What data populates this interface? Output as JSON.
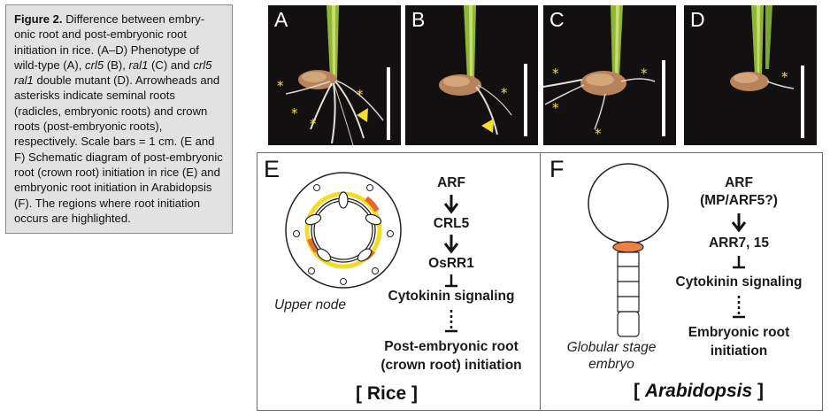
{
  "caption": {
    "fig_label": "Figure 2.",
    "parts": [
      {
        "t": " Difference between embry-onic root and post-embryonic root initiation in rice. (A–D) Phenotype of wild-type (A), ",
        "s": ""
      },
      {
        "t": "crl5",
        "s": "i"
      },
      {
        "t": " (B), ",
        "s": ""
      },
      {
        "t": "ral1",
        "s": "i"
      },
      {
        "t": " (C) and ",
        "s": ""
      },
      {
        "t": "crl5 ral1",
        "s": "i"
      },
      {
        "t": " double mutant (D). Arrowheads and asterisks indicate seminal roots (radicles, embryonic roots) and crown roots (post-embryonic roots), respectively. Scale bars = 1 cm. (E and F) Schematic diagram of post-embryonic root (crown root) initiation in rice (E) and embryonic root initiation in Arabidopsis (F). The regions where root initiation occurs are highlighted.",
        "s": ""
      }
    ]
  },
  "photos": [
    {
      "label": "A"
    },
    {
      "label": "B"
    },
    {
      "label": "C"
    },
    {
      "label": "D"
    }
  ],
  "panel_e": {
    "label": "E",
    "node_caption": "Upper node",
    "flow": [
      "ARF",
      "CRL5",
      "OsRR1",
      "Cytokinin signaling",
      "Post-embryonic root",
      "(crown root) initiation"
    ],
    "species_open": "[ ",
    "species": "Rice",
    "species_close": " ]"
  },
  "panel_f": {
    "label": "F",
    "embryo_caption_1": "Globular stage",
    "embryo_caption_2": "embryo",
    "flow": [
      "ARF",
      "(MP/ARF5?)",
      "ARR7, 15",
      "Cytokinin signaling",
      "Embryonic root",
      "initiation"
    ],
    "species_open": "[ ",
    "species": "Arabidopsis",
    "species_close": " ]"
  },
  "colors": {
    "highlight_yellow": "#f2dc2a",
    "highlight_orange": "#e36a2d",
    "embryo_orange": "#ee7f45",
    "asterisk": "#f3e23a"
  }
}
